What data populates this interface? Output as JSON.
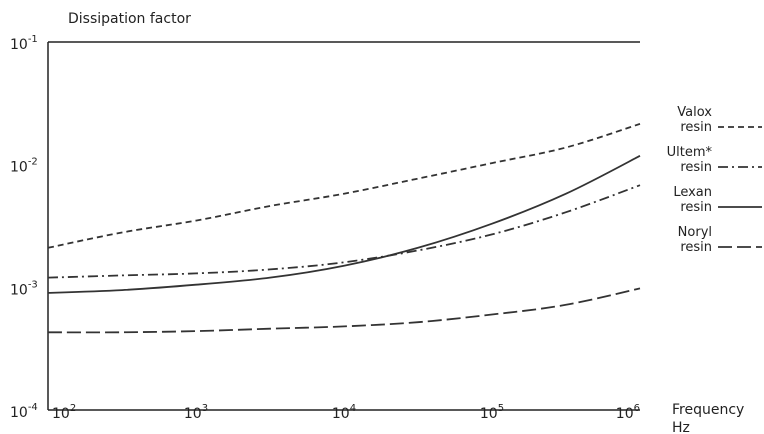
{
  "chart_data": {
    "type": "line",
    "ylabel": "Dissipation factor",
    "xlabel": "Frequency",
    "xunit": "Hz",
    "x_scale": "log",
    "y_scale": "log",
    "xlim": [
      100,
      1000000
    ],
    "ylim": [
      0.0001,
      0.1
    ],
    "grid": false,
    "legend_position": "right",
    "x_ticks": [
      {
        "value": 100,
        "base": "10",
        "exp": "2"
      },
      {
        "value": 1000,
        "base": "10",
        "exp": "3"
      },
      {
        "value": 10000,
        "base": "10",
        "exp": "4"
      },
      {
        "value": 100000,
        "base": "10",
        "exp": "5"
      },
      {
        "value": 1000000,
        "base": "10",
        "exp": "6"
      }
    ],
    "y_ticks": [
      {
        "value": 0.1,
        "base": "10",
        "exp": "-1"
      },
      {
        "value": 0.01,
        "base": "10",
        "exp": "-2"
      },
      {
        "value": 0.001,
        "base": "10",
        "exp": "-3"
      },
      {
        "value": 0.0001,
        "base": "10",
        "exp": "-4"
      }
    ],
    "x": [
      100,
      316,
      1000,
      3162,
      10000,
      31623,
      100000,
      316228,
      1000000
    ],
    "series": [
      {
        "name_line1": "Valox",
        "name_line2": "resin",
        "dash": "6,4",
        "color": "#333333",
        "values": [
          0.0021,
          0.0028,
          0.0035,
          0.0046,
          0.0058,
          0.0077,
          0.0103,
          0.0138,
          0.0215
        ]
      },
      {
        "name_line1": "Ultem*",
        "name_line2": "resin",
        "dash": "10,4,2,4",
        "color": "#333333",
        "values": [
          0.0012,
          0.00125,
          0.0013,
          0.0014,
          0.0016,
          0.002,
          0.0027,
          0.0041,
          0.0068
        ]
      },
      {
        "name_line1": "Lexan",
        "name_line2": "resin",
        "dash": "",
        "color": "#333333",
        "values": [
          0.0009,
          0.00095,
          0.00105,
          0.0012,
          0.0015,
          0.0021,
          0.0033,
          0.0058,
          0.0118
        ]
      },
      {
        "name_line1": "Noryl",
        "name_line2": "resin",
        "dash": "14,5",
        "color": "#333333",
        "values": [
          0.00043,
          0.00043,
          0.00044,
          0.00046,
          0.00048,
          0.00052,
          0.0006,
          0.00072,
          0.00098
        ]
      }
    ]
  }
}
